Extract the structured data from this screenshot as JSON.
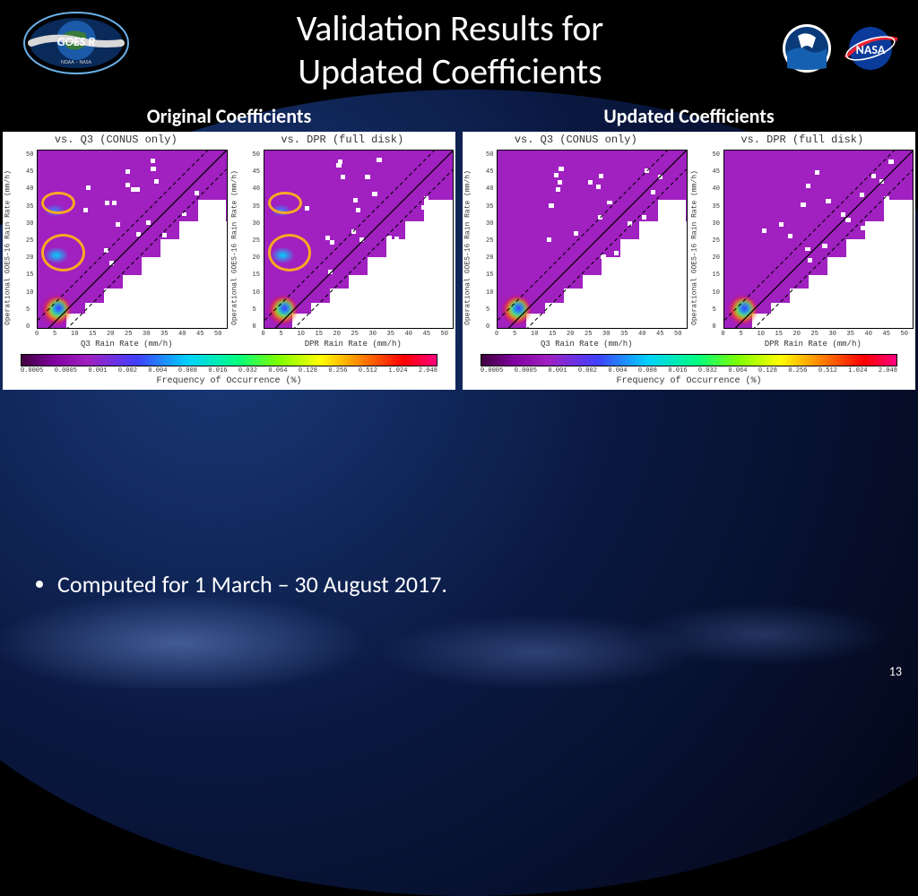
{
  "title_line1": "Validation Results for",
  "title_line2": "Updated Coefficients",
  "page_number": "13",
  "bullet_text": "Computed for 1 March – 30 August 2017.",
  "groups": [
    {
      "title": "Original Coefficients",
      "annotated": true
    },
    {
      "title": "Updated Coefficients",
      "annotated": false
    }
  ],
  "subplots": [
    {
      "title": "vs. Q3 (CONUS only)",
      "xlabel": "Q3 Rain Rate (mm/h)"
    },
    {
      "title": "vs. DPR (full disk)",
      "xlabel": "DPR Rain Rate (mm/h)"
    }
  ],
  "ylabel": "Operational GOES-16 Rain Rate (mm/h)",
  "axis_range": {
    "min": 0,
    "max": 50,
    "step": 5
  },
  "axis_ticks": [
    "0",
    "5",
    "10",
    "15",
    "20",
    "25",
    "30",
    "35",
    "40",
    "45",
    "50"
  ],
  "colorbar": {
    "label": "Frequency of Occurrence (%)",
    "ticks": [
      "0.0005",
      "0.0005",
      "0.001",
      "0.002",
      "0.004",
      "0.008",
      "0.016",
      "0.032",
      "0.064",
      "0.128",
      "0.256",
      "0.512",
      "1.024",
      "2.048"
    ],
    "colors": [
      "#400040",
      "#8000a0",
      "#a020c0",
      "#4040ff",
      "#00d0ff",
      "#00ff80",
      "#80ff00",
      "#ffff00",
      "#ff8000",
      "#ff0000",
      "#ff0080"
    ]
  },
  "annotation_circles": [
    {
      "left_pct": 2,
      "bottom_pct": 64,
      "w_pct": 18,
      "h_pct": 13
    },
    {
      "left_pct": 2,
      "bottom_pct": 32,
      "w_pct": 23,
      "h_pct": 21
    }
  ],
  "heatmap_style": {
    "base_color": "#a020c0",
    "white_region": "lower-right-triangle",
    "hotspot_colors": [
      "#ff0000",
      "#ff8000",
      "#ffff00",
      "#00ff80",
      "#00d0ff",
      "#4040ff"
    ],
    "diagonal_lines": {
      "solid": true,
      "dashed_offset": 0.1
    }
  },
  "logos": {
    "goesr": {
      "text": "GOES R",
      "sub": "NOAA – NASA"
    },
    "nasa": {
      "text": "NASA"
    }
  }
}
